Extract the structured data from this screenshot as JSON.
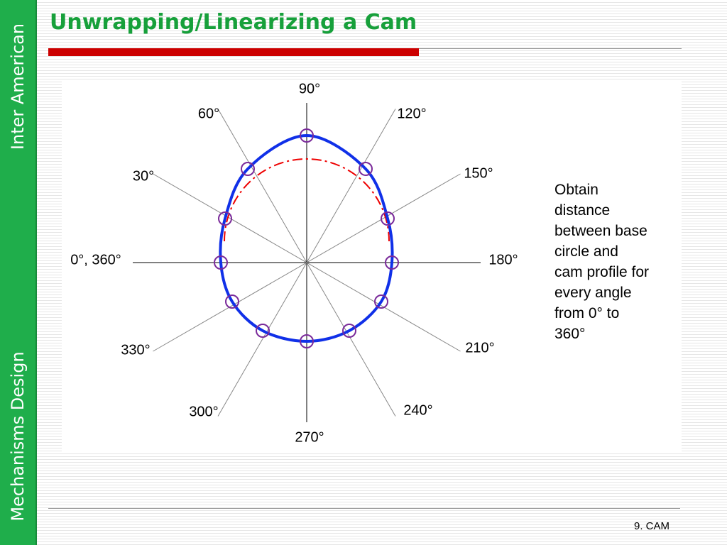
{
  "sidebar": {
    "top": "Inter American",
    "bottom": "Mechanisms Design"
  },
  "header": {
    "title": "Unwrapping/Linearizing a Cam"
  },
  "diagram": {
    "angle_labels": [
      "0°, 360°",
      "30°",
      "60°",
      "90°",
      "120°",
      "150°",
      "180°",
      "210°",
      "240°",
      "270°",
      "300°",
      "330°"
    ]
  },
  "note": {
    "lines": [
      "Obtain",
      "distance",
      "between base",
      "circle and",
      "cam profile for",
      "every angle",
      "from 0° to",
      "360°"
    ]
  },
  "footer": {
    "page": "9. CAM"
  }
}
